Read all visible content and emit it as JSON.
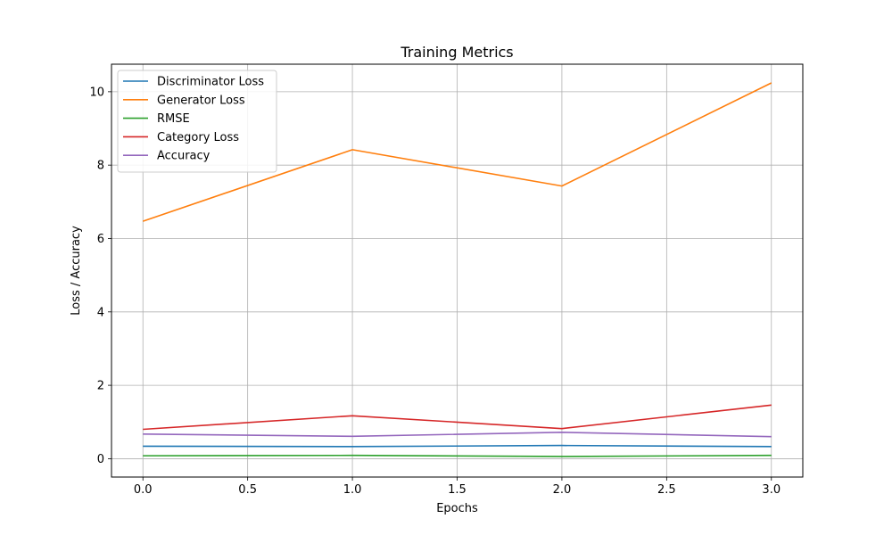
{
  "chart_data": {
    "type": "line",
    "title": "Training Metrics",
    "xlabel": "Epochs",
    "ylabel": "Loss / Accuracy",
    "xlim": [
      -0.15,
      3.15
    ],
    "ylim": [
      -0.5,
      10.75
    ],
    "xticks": [
      0.0,
      0.5,
      1.0,
      1.5,
      2.0,
      2.5,
      3.0
    ],
    "xtick_labels": [
      "0.0",
      "0.5",
      "1.0",
      "1.5",
      "2.0",
      "2.5",
      "3.0"
    ],
    "yticks": [
      0,
      2,
      4,
      6,
      8,
      10
    ],
    "ytick_labels": [
      "0",
      "2",
      "4",
      "6",
      "8",
      "10"
    ],
    "grid": true,
    "legend_position": "top-left",
    "x": [
      0,
      1,
      2,
      3
    ],
    "series": [
      {
        "name": "Discriminator Loss",
        "color": "#1f77b4",
        "values": [
          0.34,
          0.33,
          0.36,
          0.33
        ]
      },
      {
        "name": "Generator Loss",
        "color": "#ff7f0e",
        "values": [
          6.47,
          8.42,
          7.43,
          10.24
        ]
      },
      {
        "name": "RMSE",
        "color": "#2ca02c",
        "values": [
          0.08,
          0.09,
          0.06,
          0.09
        ]
      },
      {
        "name": "Category Loss",
        "color": "#d62728",
        "values": [
          0.8,
          1.17,
          0.82,
          1.46
        ]
      },
      {
        "name": "Accuracy",
        "color": "#9467bd",
        "values": [
          0.67,
          0.61,
          0.72,
          0.6
        ]
      }
    ]
  }
}
